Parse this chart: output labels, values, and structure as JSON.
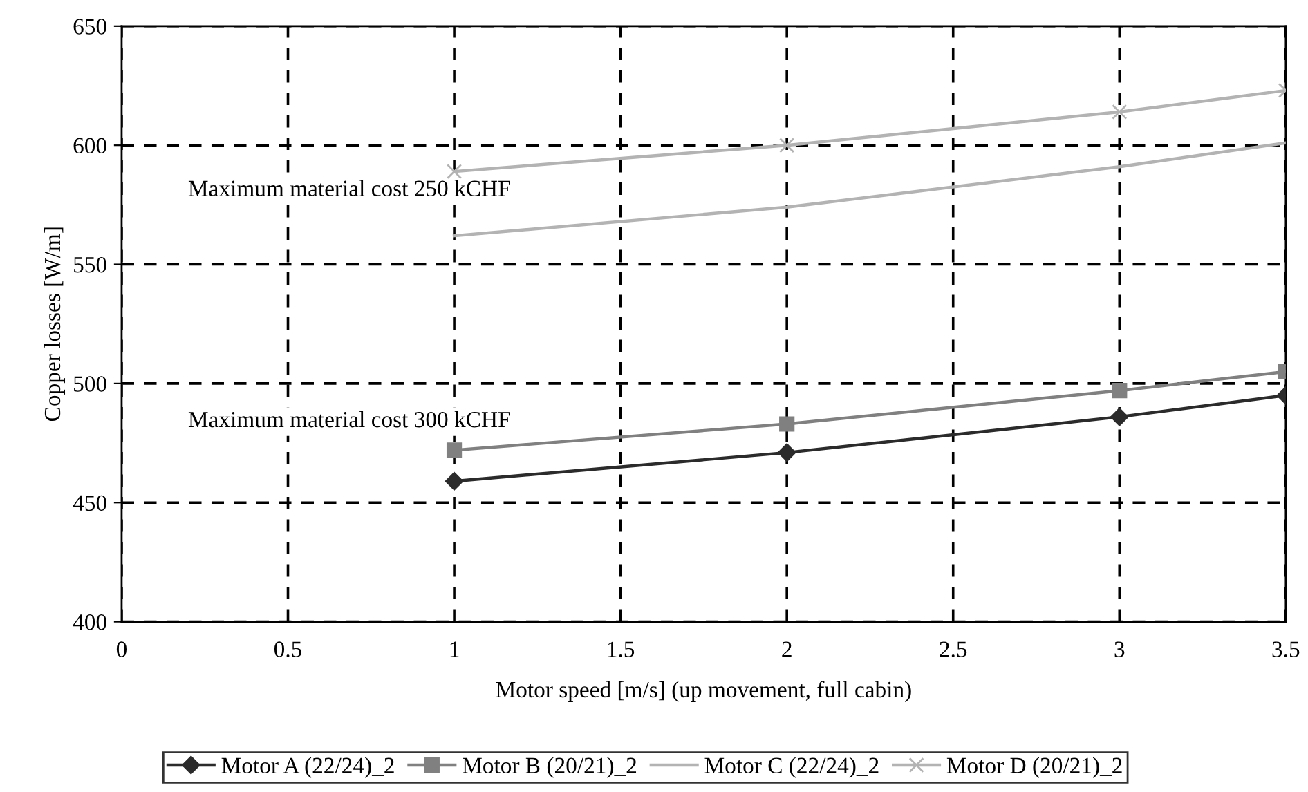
{
  "chart_data": {
    "type": "line",
    "xlabel": "Motor speed [m/s] (up movement, full cabin)",
    "ylabel": "Copper losses [W/m]",
    "xlim": [
      0,
      3.5
    ],
    "xticks": [
      0,
      0.5,
      1,
      1.5,
      2,
      2.5,
      3,
      3.5
    ],
    "ylim": [
      400,
      650
    ],
    "yticks": [
      400,
      450,
      500,
      550,
      600,
      650
    ],
    "grid": true,
    "legend": "bottom",
    "line_style": "solid",
    "series": [
      {
        "name": "Motor A (22/24)_2",
        "color": "#2b2b2b",
        "marker": "diamond",
        "x": [
          1,
          2,
          3,
          3.5
        ],
        "values": [
          459,
          471,
          486,
          495
        ]
      },
      {
        "name": "Motor B (20/21)_2",
        "color": "#808080",
        "marker": "square",
        "x": [
          1,
          2,
          3,
          3.5
        ],
        "values": [
          472,
          483,
          497,
          505
        ]
      },
      {
        "name": "Motor C (22/24)_2",
        "color": "#b3b3b3",
        "marker": "none",
        "x": [
          1,
          2,
          3,
          3.5
        ],
        "values": [
          562,
          574,
          591,
          601
        ]
      },
      {
        "name": "Motor D (20/21)_2",
        "color": "#b3b3b3",
        "marker": "cross",
        "x": [
          1,
          2,
          3,
          3.5
        ],
        "values": [
          589,
          600,
          614,
          623
        ]
      }
    ],
    "annotations": [
      "Maximum material cost 250 kCHF",
      "Maximum material cost 300 kCHF"
    ]
  }
}
